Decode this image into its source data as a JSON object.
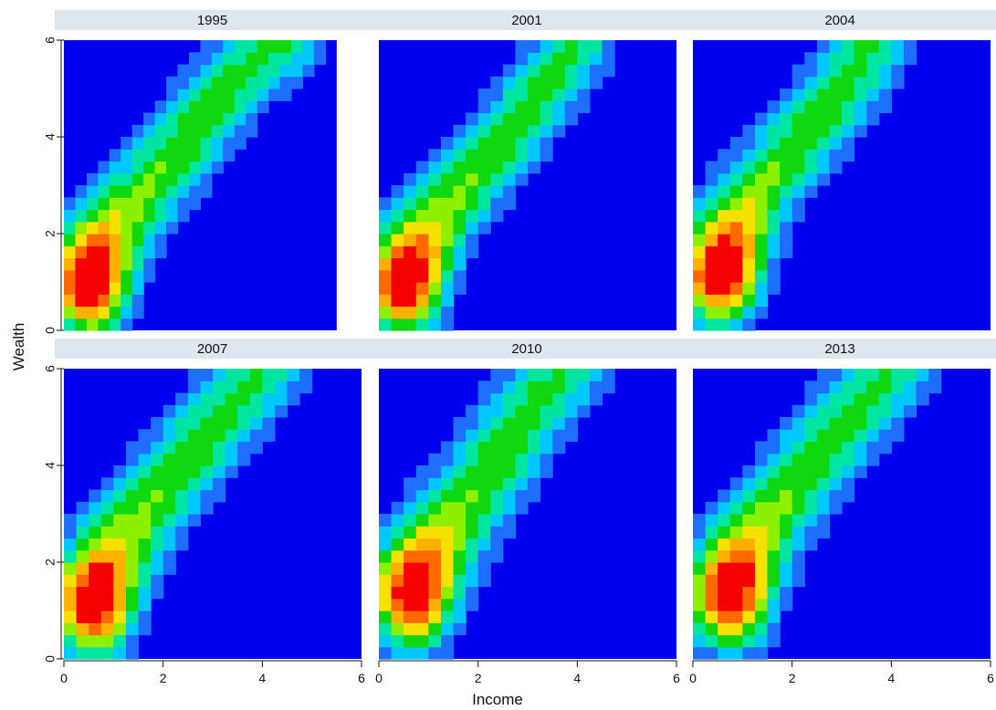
{
  "chart_data": {
    "type": "heatmap",
    "xlabel": "Income",
    "ylabel": "Wealth",
    "xlim": [
      0,
      6
    ],
    "ylim": [
      0,
      6
    ],
    "x_ticks": [
      "0",
      "2",
      "4",
      "6"
    ],
    "y_ticks": [
      "0",
      "2",
      "4",
      "6"
    ],
    "grid": true,
    "legend": "none",
    "colors": {
      "level0": "#0000ee",
      "level1": "#1e6fff",
      "level2": "#00c8ff",
      "level3": "#00e6a0",
      "level4": "#10d810",
      "level5": "#8cf000",
      "level6": "#f5e000",
      "level7": "#ffb000",
      "level8": "#ff6a00",
      "level9": "#f50000",
      "strip": "#dce7ef"
    },
    "panels": [
      {
        "year": "1995",
        "ridge": [
          [
            0.5,
            1.0
          ],
          [
            1.2,
            2.4
          ],
          [
            2.5,
            4.0
          ],
          [
            3.4,
            5.2
          ],
          [
            4.4,
            6.0
          ]
        ],
        "width": 0.55,
        "peak": 9,
        "extent": 5.5
      },
      {
        "year": "2001",
        "ridge": [
          [
            0.5,
            1.0
          ],
          [
            1.4,
            2.6
          ],
          [
            2.4,
            3.8
          ],
          [
            3.3,
            5.0
          ],
          [
            4.0,
            6.0
          ]
        ],
        "width": 0.52,
        "peak": 9,
        "extent": 6.0
      },
      {
        "year": "2004",
        "ridge": [
          [
            0.55,
            1.2
          ],
          [
            1.3,
            2.9
          ],
          [
            2.2,
            4.0
          ],
          [
            3.0,
            5.0
          ],
          [
            3.6,
            6.0
          ]
        ],
        "width": 0.55,
        "peak": 9,
        "extent": 6.0
      },
      {
        "year": "2007",
        "ridge": [
          [
            0.6,
            1.2
          ],
          [
            1.5,
            2.9
          ],
          [
            2.5,
            4.2
          ],
          [
            3.3,
            5.2
          ],
          [
            4.0,
            6.0
          ]
        ],
        "width": 0.58,
        "peak": 9,
        "extent": 6.0
      },
      {
        "year": "2010",
        "ridge": [
          [
            0.7,
            1.4
          ],
          [
            1.6,
            3.0
          ],
          [
            2.4,
            4.2
          ],
          [
            3.2,
            5.4
          ],
          [
            3.7,
            6.0
          ]
        ],
        "width": 0.6,
        "peak": 9,
        "extent": 6.0
      },
      {
        "year": "2013",
        "ridge": [
          [
            0.75,
            1.4
          ],
          [
            1.6,
            3.0
          ],
          [
            2.4,
            4.1
          ],
          [
            3.3,
            5.2
          ],
          [
            4.0,
            6.0
          ]
        ],
        "width": 0.58,
        "peak": 9,
        "extent": 6.0
      }
    ]
  }
}
